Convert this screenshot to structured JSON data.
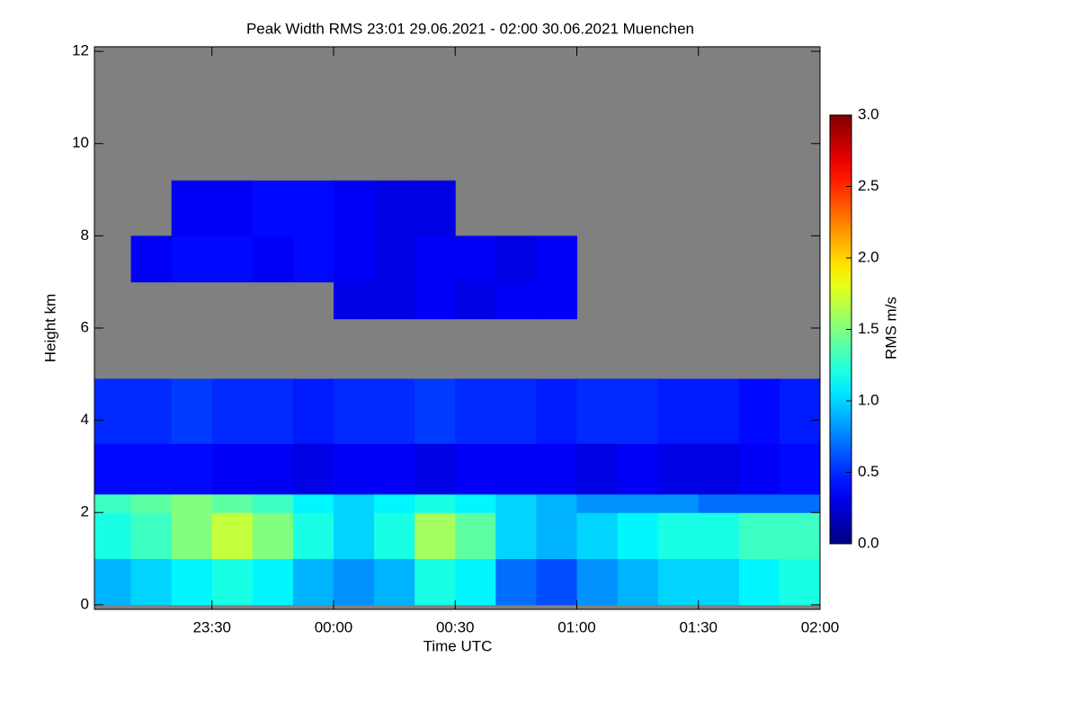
{
  "chart_data": {
    "type": "heatmap",
    "title": "Peak Width RMS   23:01 29.06.2021 - 02:00 30.06.2021 Muenchen",
    "x_label": "Time UTC",
    "y_label": "Height km",
    "colorbar_label": "RMS m/s",
    "xlim": [
      1,
      180
    ],
    "ylim": [
      -0.1,
      12.1
    ],
    "xticks": [
      {
        "value": 30,
        "label": "23:30"
      },
      {
        "value": 60,
        "label": "00:00"
      },
      {
        "value": 90,
        "label": "00:30"
      },
      {
        "value": 120,
        "label": "01:00"
      },
      {
        "value": 150,
        "label": "01:30"
      },
      {
        "value": 180,
        "label": "02:00"
      }
    ],
    "yticks": [
      0,
      2,
      4,
      6,
      8,
      10,
      12
    ],
    "zlim": [
      0,
      3
    ],
    "zticks": [
      {
        "value": 0,
        "label": "0.0"
      },
      {
        "value": 0.5,
        "label": "0.5"
      },
      {
        "value": 1,
        "label": "1.0"
      },
      {
        "value": 1.5,
        "label": "1.5"
      },
      {
        "value": 2,
        "label": "2.0"
      },
      {
        "value": 2.5,
        "label": "2.5"
      },
      {
        "value": 3,
        "label": "3.0"
      }
    ],
    "colormap": "jet",
    "missing_color": "#808080",
    "x_edges": [
      1,
      10,
      20,
      30,
      40,
      50,
      60,
      70,
      80,
      90,
      100,
      110,
      120,
      130,
      140,
      150,
      160,
      170,
      180
    ],
    "y_edges": [
      0,
      1,
      2,
      2.4,
      3.5,
      4.9,
      6.2,
      7,
      8,
      9.2,
      12
    ],
    "values": [
      [
        0.9,
        1.0,
        1.1,
        1.2,
        1.1,
        0.9,
        0.8,
        0.9,
        1.2,
        1.1,
        0.7,
        0.6,
        0.8,
        0.9,
        1.0,
        1.0,
        1.1,
        1.2
      ],
      [
        1.2,
        1.3,
        1.5,
        1.7,
        1.5,
        1.2,
        1.0,
        1.2,
        1.6,
        1.4,
        1.0,
        0.9,
        1.0,
        1.1,
        1.2,
        1.2,
        1.3,
        1.3
      ],
      [
        1.3,
        1.4,
        1.5,
        1.4,
        1.3,
        1.1,
        1.0,
        1.1,
        1.2,
        1.1,
        1.0,
        0.9,
        0.8,
        0.8,
        0.8,
        0.7,
        0.7,
        0.7
      ],
      [
        0.4,
        0.4,
        0.4,
        0.35,
        0.35,
        0.3,
        0.35,
        0.35,
        0.3,
        0.35,
        0.35,
        0.35,
        0.3,
        0.35,
        0.3,
        0.3,
        0.35,
        0.4
      ],
      [
        0.5,
        0.5,
        0.55,
        0.5,
        0.5,
        0.45,
        0.5,
        0.5,
        0.55,
        0.5,
        0.5,
        0.45,
        0.5,
        0.5,
        0.45,
        0.45,
        0.4,
        0.45
      ],
      [
        null,
        null,
        null,
        null,
        null,
        null,
        null,
        null,
        null,
        null,
        null,
        null,
        null,
        null,
        null,
        null,
        null,
        null
      ],
      [
        null,
        null,
        null,
        null,
        null,
        null,
        0.3,
        0.3,
        0.35,
        0.3,
        0.35,
        0.35,
        null,
        null,
        null,
        null,
        null,
        null
      ],
      [
        null,
        0.35,
        0.4,
        0.4,
        0.35,
        0.4,
        0.35,
        0.3,
        0.35,
        0.35,
        0.3,
        0.35,
        null,
        null,
        null,
        null,
        null,
        null
      ],
      [
        null,
        null,
        0.35,
        0.35,
        0.4,
        0.4,
        0.35,
        0.3,
        0.3,
        null,
        null,
        null,
        null,
        null,
        null,
        null,
        null,
        null
      ],
      [
        null,
        null,
        null,
        null,
        null,
        null,
        null,
        null,
        null,
        null,
        null,
        null,
        null,
        null,
        null,
        null,
        null,
        null
      ]
    ]
  }
}
